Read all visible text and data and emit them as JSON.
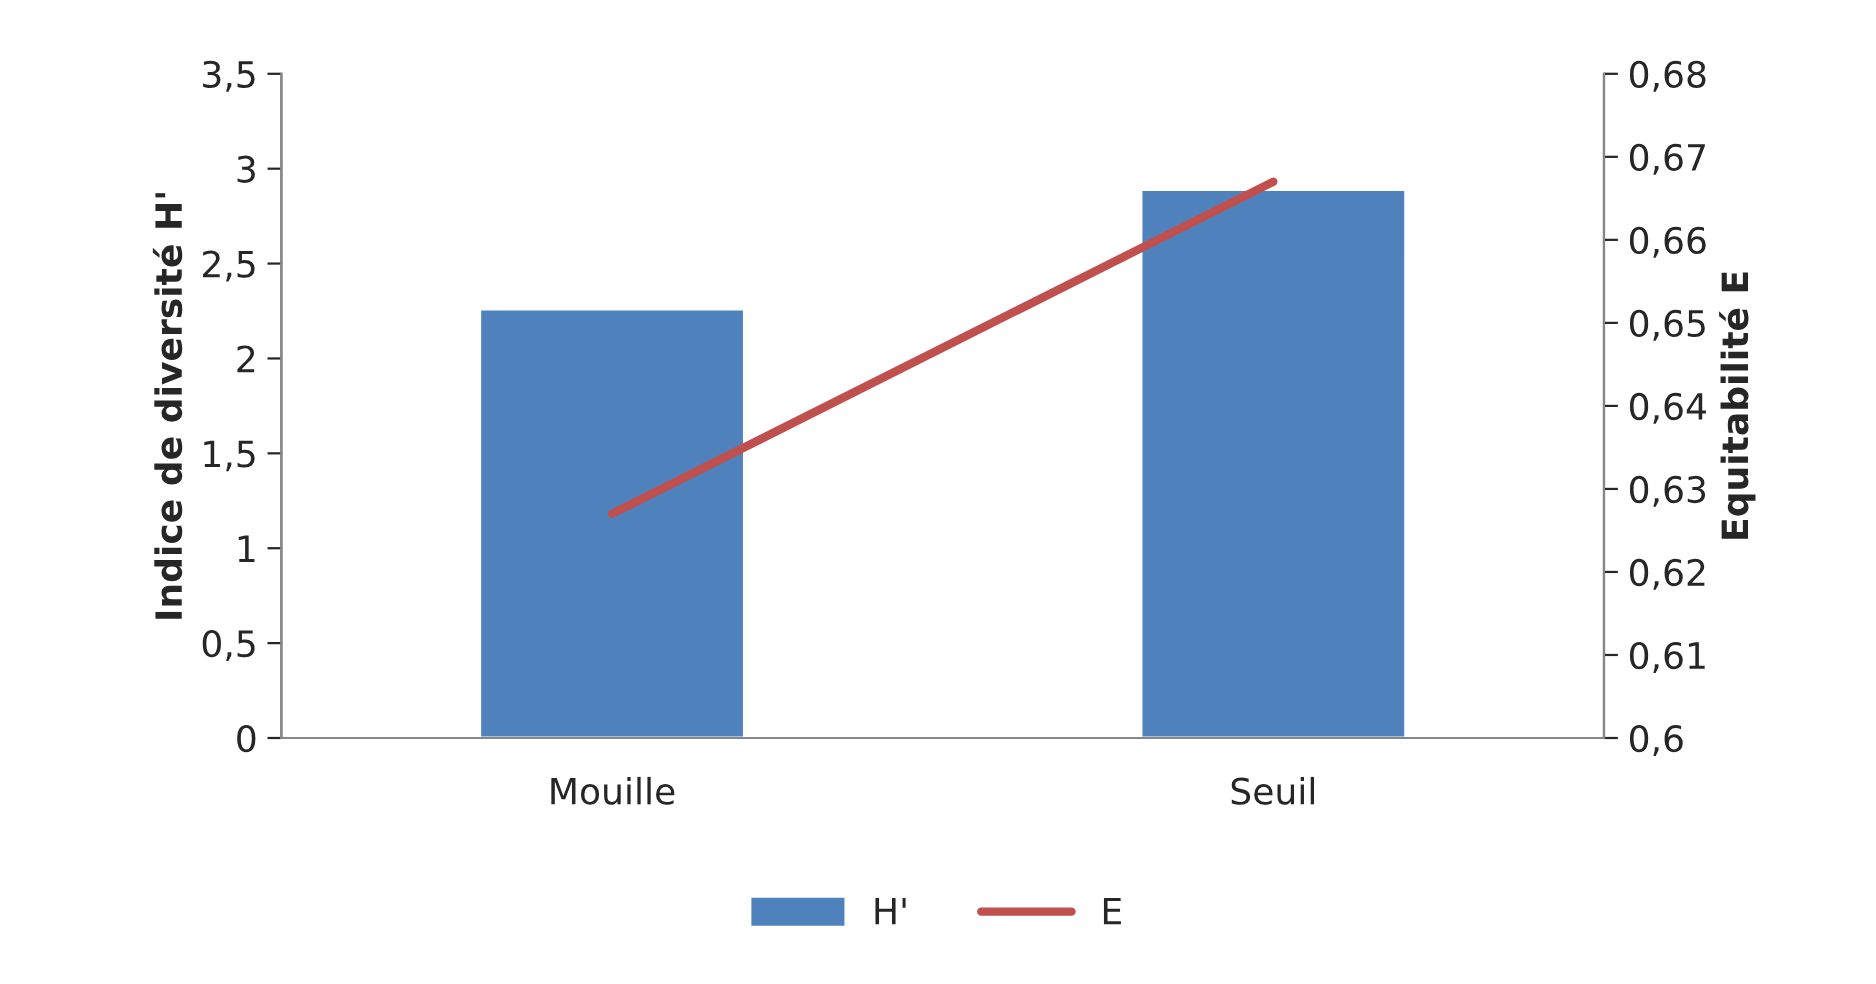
{
  "chart_data": {
    "type": "bar",
    "categories": [
      "Mouille",
      "Seuil"
    ],
    "ylabel": "Indice de diversité H'",
    "y2label": "Equitabilité E",
    "series": [
      {
        "name": "H'",
        "color": "#4f81bd",
        "values": [
          2.26,
          2.89
        ]
      },
      {
        "name": "E",
        "type": "line",
        "axis": "y2",
        "color": "#c0504d",
        "values": [
          0.627,
          0.667
        ]
      }
    ],
    "ylim": [
      0,
      3.5
    ],
    "yticks": [
      {
        "value": 0,
        "label": "0"
      },
      {
        "value": 0.5,
        "label": "0,5"
      },
      {
        "value": 1,
        "label": "1"
      },
      {
        "value": 1.5,
        "label": "1,5"
      },
      {
        "value": 2,
        "label": "2"
      },
      {
        "value": 2.5,
        "label": "2,5"
      },
      {
        "value": 3,
        "label": "3"
      },
      {
        "value": 3.5,
        "label": "3,5"
      }
    ],
    "y2lim": [
      0.6,
      0.68
    ],
    "y2ticks": [
      {
        "value": 0.6,
        "label": "0,6"
      },
      {
        "value": 0.61,
        "label": "0,61"
      },
      {
        "value": 0.62,
        "label": "0,62"
      },
      {
        "value": 0.63,
        "label": "0,63"
      },
      {
        "value": 0.64,
        "label": "0,64"
      },
      {
        "value": 0.65,
        "label": "0,65"
      },
      {
        "value": 0.66,
        "label": "0,66"
      },
      {
        "value": 0.67,
        "label": "0,67"
      },
      {
        "value": 0.68,
        "label": "0,68"
      }
    ],
    "grid": false,
    "legend": "bottom",
    "marker": "none"
  }
}
